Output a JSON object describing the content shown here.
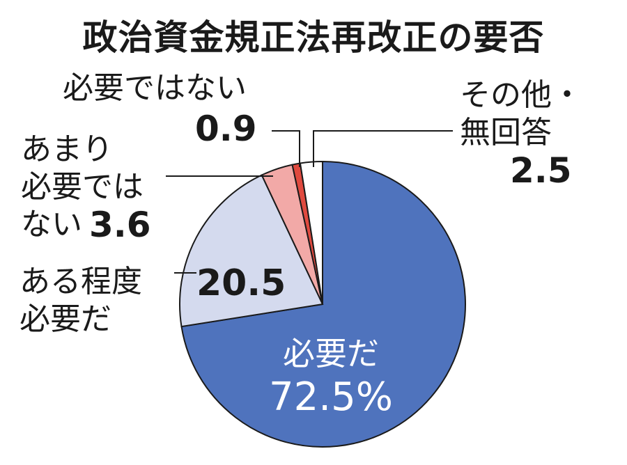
{
  "chart_data": {
    "type": "pie",
    "title": "政治資金規正法再改正の要否",
    "unit": "%",
    "slices": [
      {
        "label": "必要だ",
        "value": 72.5,
        "value_text": "72.5%",
        "color": "#4f73bd"
      },
      {
        "label": "ある程度\n必要だ",
        "value": 20.5,
        "value_text": "20.5",
        "color": "#d4daee"
      },
      {
        "label": "あまり\n必要では\nない",
        "value": 3.6,
        "value_text": "3.6",
        "color": "#f2a9a7"
      },
      {
        "label": "必要ではない",
        "value": 0.9,
        "value_text": "0.9",
        "color": "#e04a3f"
      },
      {
        "label": "その他・\n無回答",
        "value": 2.5,
        "value_text": "2.5",
        "color": "#ffffff"
      }
    ],
    "start_angle_deg": 0,
    "direction": "clockwise"
  }
}
